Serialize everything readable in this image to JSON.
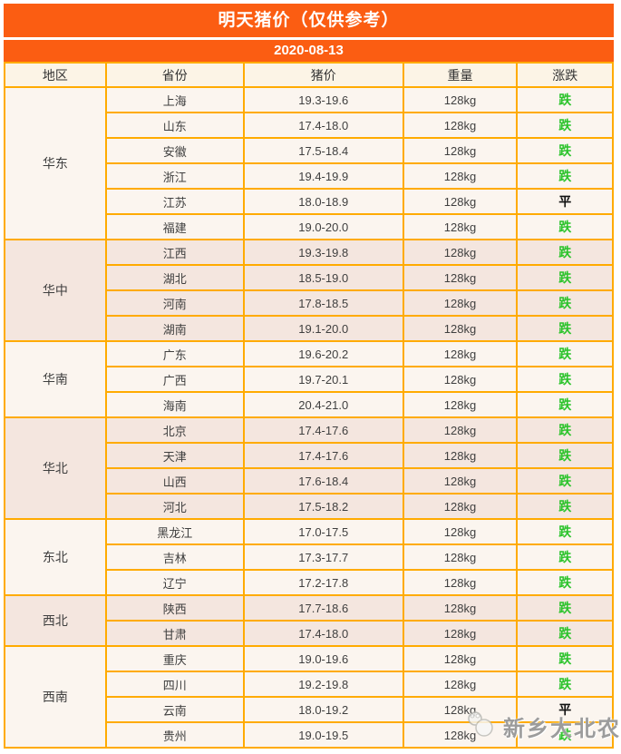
{
  "chart_data": {
    "type": "table",
    "title": "明天猪价（仅供参考）",
    "subtitle": "2020-08-13",
    "columns": [
      "地区",
      "省份",
      "猪价",
      "重量",
      "涨跌"
    ],
    "groups": [
      {
        "name": "华东",
        "rows": [
          [
            "上海",
            "19.3-19.6",
            "128kg",
            "跌"
          ],
          [
            "山东",
            "17.4-18.0",
            "128kg",
            "跌"
          ],
          [
            "安徽",
            "17.5-18.4",
            "128kg",
            "跌"
          ],
          [
            "浙江",
            "19.4-19.9",
            "128kg",
            "跌"
          ],
          [
            "江苏",
            "18.0-18.9",
            "128kg",
            "平"
          ],
          [
            "福建",
            "19.0-20.0",
            "128kg",
            "跌"
          ]
        ]
      },
      {
        "name": "华中",
        "rows": [
          [
            "江西",
            "19.3-19.8",
            "128kg",
            "跌"
          ],
          [
            "湖北",
            "18.5-19.0",
            "128kg",
            "跌"
          ],
          [
            "河南",
            "17.8-18.5",
            "128kg",
            "跌"
          ],
          [
            "湖南",
            "19.1-20.0",
            "128kg",
            "跌"
          ]
        ]
      },
      {
        "name": "华南",
        "rows": [
          [
            "广东",
            "19.6-20.2",
            "128kg",
            "跌"
          ],
          [
            "广西",
            "19.7-20.1",
            "128kg",
            "跌"
          ],
          [
            "海南",
            "20.4-21.0",
            "128kg",
            "跌"
          ]
        ]
      },
      {
        "name": "华北",
        "rows": [
          [
            "北京",
            "17.4-17.6",
            "128kg",
            "跌"
          ],
          [
            "天津",
            "17.4-17.6",
            "128kg",
            "跌"
          ],
          [
            "山西",
            "17.6-18.4",
            "128kg",
            "跌"
          ],
          [
            "河北",
            "17.5-18.2",
            "128kg",
            "跌"
          ]
        ]
      },
      {
        "name": "东北",
        "rows": [
          [
            "黑龙江",
            "17.0-17.5",
            "128kg",
            "跌"
          ],
          [
            "吉林",
            "17.3-17.7",
            "128kg",
            "跌"
          ],
          [
            "辽宁",
            "17.2-17.8",
            "128kg",
            "跌"
          ]
        ]
      },
      {
        "name": "西北",
        "rows": [
          [
            "陕西",
            "17.7-18.6",
            "128kg",
            "跌"
          ],
          [
            "甘肃",
            "17.4-18.0",
            "128kg",
            "跌"
          ]
        ]
      },
      {
        "name": "西南",
        "rows": [
          [
            "重庆",
            "19.0-19.6",
            "128kg",
            "跌"
          ],
          [
            "四川",
            "19.2-19.8",
            "128kg",
            "跌"
          ],
          [
            "云南",
            "18.0-19.2",
            "128kg",
            "平"
          ],
          [
            "贵州",
            "19.0-19.5",
            "128kg",
            "跌"
          ]
        ]
      }
    ]
  },
  "trend_legend": {
    "down": "跌",
    "flat": "平"
  },
  "watermark": {
    "label": "新乡大北农"
  },
  "colors": {
    "banner_orange": "#FB5D12",
    "grid_amber": "#FFAB00",
    "header_bg": "#FCF4E6",
    "group_light_bg": "#FBF5EF",
    "group_dark_bg": "#F4E6DF",
    "trend_down_green": "#2AC32A",
    "trend_flat_black": "#111111",
    "text": "#3F3F3F"
  }
}
